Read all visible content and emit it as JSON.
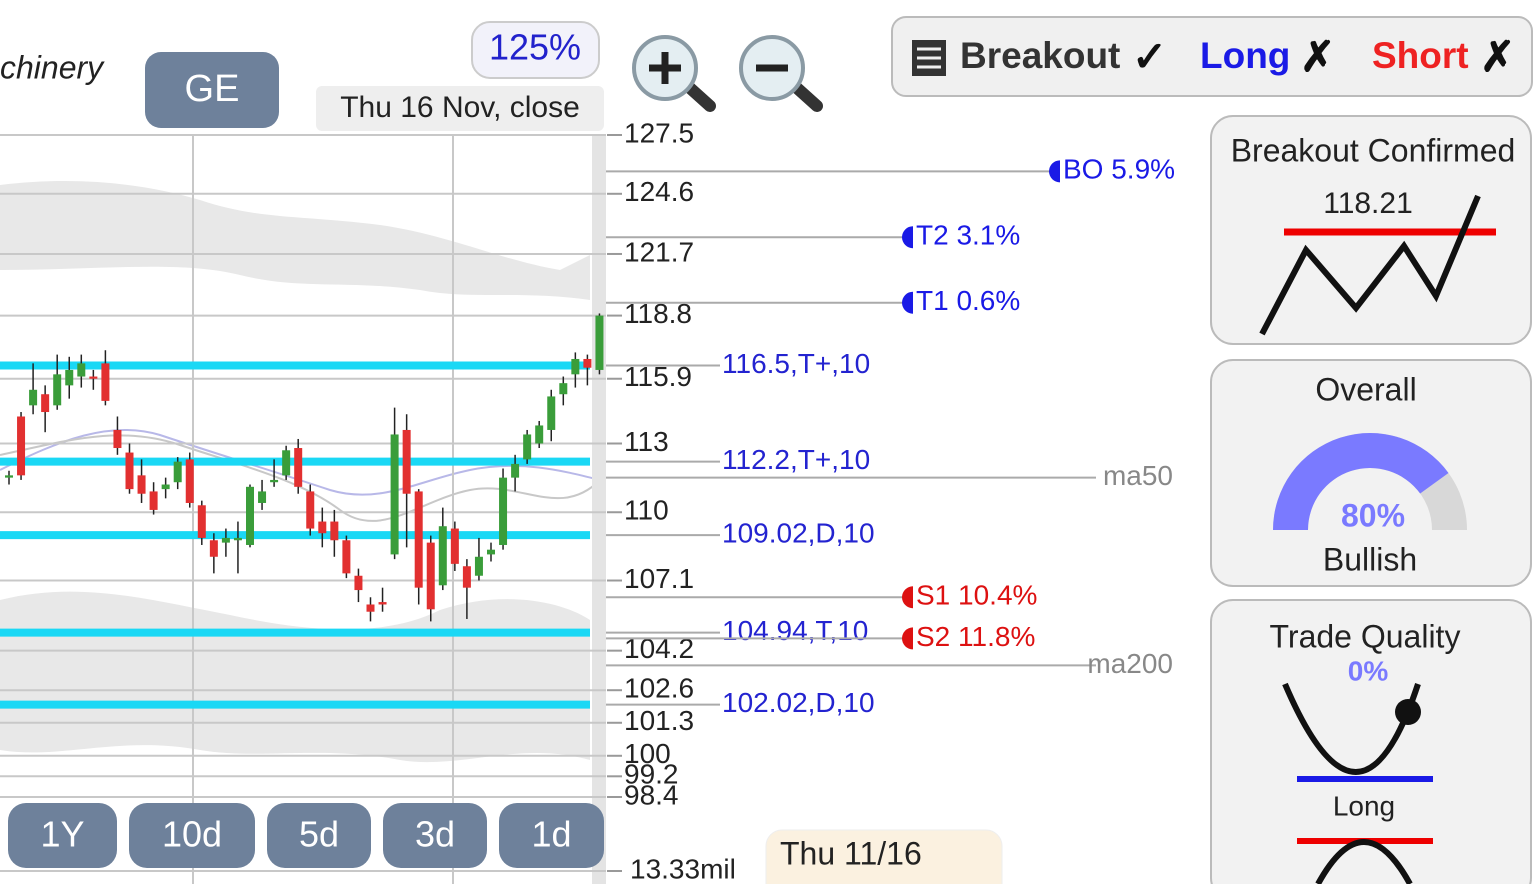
{
  "header": {
    "sector": "chinery",
    "symbol": "GE",
    "zoom": "125%",
    "date": "Thu 16 Nov, close"
  },
  "signals": [
    {
      "label": "Breakout",
      "mark": "✓",
      "color": "#333333"
    },
    {
      "label": "Long",
      "mark": "✗",
      "color": "#1a1ae6"
    },
    {
      "label": "Short",
      "mark": "✗",
      "color": "#ee2222"
    }
  ],
  "chart": {
    "type": "candlestick",
    "log": true,
    "grid": true,
    "ylim": [
      98.4,
      127.5
    ],
    "yticks": [
      127.5,
      124.6,
      121.7,
      118.8,
      115.9,
      113,
      110,
      107.1,
      104.2,
      102.6,
      101.3,
      100,
      99.2,
      98.4
    ],
    "up_color": "#3a9d3a",
    "down_color": "#e23030",
    "open": [
      111.5,
      114.2,
      114.7,
      115.2,
      114.7,
      115.6,
      116.0,
      116.0,
      116.6,
      113.6,
      112.6,
      111.6,
      110.9,
      111.0,
      111.3,
      112.3,
      110.3,
      108.8,
      108.7,
      108.8,
      108.6,
      110.4,
      111.3,
      111.6,
      112.8,
      110.9,
      109.6,
      109.6,
      108.8,
      107.3,
      106.1,
      106.2,
      108.2,
      113.6,
      110.9,
      108.7,
      106.9,
      109.3,
      107.7,
      107.3,
      108.2,
      108.6,
      111.5,
      112.3,
      113.0,
      113.6,
      115.2,
      116.1,
      116.8,
      116.3
    ],
    "high": [
      111.8,
      114.4,
      116.6,
      115.6,
      117.0,
      116.9,
      117.0,
      116.3,
      117.2,
      114.2,
      113.0,
      112.3,
      111.3,
      111.5,
      112.4,
      112.6,
      110.5,
      109.1,
      109.3,
      109.6,
      111.2,
      111.4,
      112.3,
      112.9,
      113.2,
      111.2,
      110.2,
      110.1,
      109.0,
      107.6,
      106.4,
      106.8,
      114.6,
      114.3,
      111.0,
      109.0,
      110.2,
      109.6,
      108.0,
      108.9,
      108.7,
      111.9,
      112.5,
      113.6,
      114.0,
      115.4,
      116.0,
      117.1,
      117.0,
      118.9
    ],
    "low": [
      111.2,
      111.4,
      114.3,
      113.5,
      114.5,
      115.0,
      115.5,
      115.4,
      114.7,
      112.5,
      110.8,
      110.4,
      109.9,
      110.6,
      111.0,
      110.2,
      108.6,
      107.4,
      108.1,
      107.4,
      108.5,
      110.1,
      111.1,
      111.4,
      110.8,
      109.0,
      108.5,
      108.1,
      107.2,
      106.2,
      105.4,
      105.8,
      108.0,
      108.5,
      106.1,
      105.4,
      106.7,
      107.5,
      105.5,
      107.1,
      107.9,
      108.4,
      110.9,
      112.1,
      112.8,
      113.1,
      114.7,
      115.5,
      115.6,
      116.1
    ],
    "close": [
      111.6,
      111.6,
      115.4,
      114.4,
      116.1,
      116.3,
      116.6,
      115.9,
      114.9,
      112.8,
      111.0,
      110.8,
      110.1,
      111.2,
      112.2,
      110.4,
      108.9,
      108.1,
      108.9,
      108.9,
      111.1,
      110.9,
      111.4,
      112.7,
      111.1,
      109.3,
      109.1,
      108.8,
      107.4,
      106.7,
      105.8,
      106.1,
      113.4,
      110.8,
      106.8,
      105.9,
      109.4,
      107.8,
      106.8,
      108.1,
      108.4,
      111.5,
      112.1,
      113.4,
      113.8,
      115.1,
      115.7,
      116.8,
      116.4,
      118.8
    ],
    "levels": [
      {
        "label": "116.5,T+,10",
        "value": 116.5
      },
      {
        "label": "112.2,T+,10",
        "value": 112.2
      },
      {
        "label": "109.02,D,10",
        "value": 109.02
      },
      {
        "label": "104.94,T,10",
        "value": 104.94
      },
      {
        "label": "102.02,D,10",
        "value": 102.02
      }
    ],
    "targets": [
      {
        "label": "BO 5.9%",
        "price": 125.7,
        "color": "#1a1ae6"
      },
      {
        "label": "T2 3.1%",
        "price": 122.5,
        "color": "#1a1ae6"
      },
      {
        "label": "T1 0.6%",
        "price": 119.4,
        "color": "#1a1ae6"
      },
      {
        "label": "S1 10.4%",
        "price": 106.4,
        "color": "#dd1111"
      },
      {
        "label": "S2 11.8%",
        "price": 104.7,
        "color": "#dd1111"
      }
    ],
    "averages": [
      {
        "label": "ma50",
        "price": 111.5
      },
      {
        "label": "ma200",
        "price": 103.6
      }
    ],
    "volume_label": "13.33mil",
    "date_label": "Thu 11/16"
  },
  "ranges": [
    "1Y",
    "10d",
    "5d",
    "3d",
    "1d"
  ],
  "panels": {
    "breakout": {
      "title": "Breakout Confirmed",
      "price": 118.21
    },
    "overall": {
      "title": "Overall",
      "value": 80,
      "value_label": "80%",
      "range": [
        0,
        100
      ],
      "verdict": "Bullish"
    },
    "quality": {
      "title": "Trade Quality",
      "value": 0,
      "value_label": "0%",
      "side": "Long"
    }
  }
}
